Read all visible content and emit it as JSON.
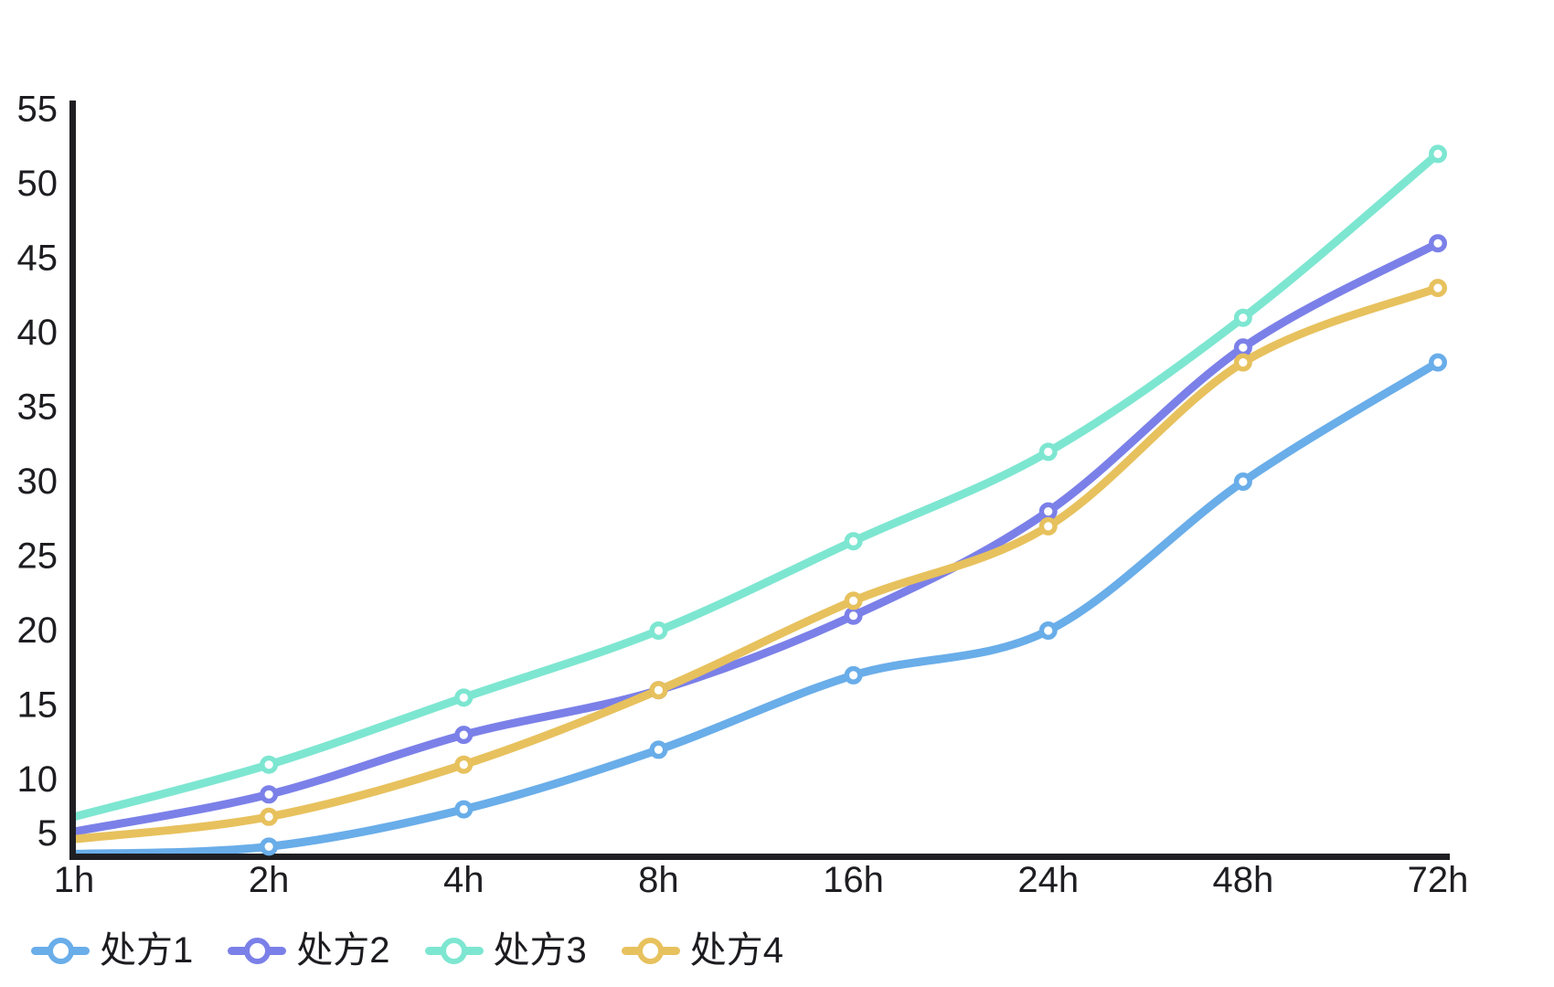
{
  "chart_data": {
    "type": "line",
    "title": "",
    "xlabel": "",
    "ylabel": "",
    "categories": [
      "1h",
      "2h",
      "4h",
      "8h",
      "16h",
      "24h",
      "48h",
      "72h"
    ],
    "series": [
      {
        "name": "处方1",
        "color": "#69ADE9",
        "values": [
          5,
          5.5,
          8,
          12,
          17,
          20,
          30,
          38
        ]
      },
      {
        "name": "处方2",
        "color": "#7B80E8",
        "values": [
          6.5,
          9,
          13,
          16,
          21,
          28,
          39,
          46
        ]
      },
      {
        "name": "处方3",
        "color": "#7DE6D1",
        "values": [
          7.5,
          11,
          15.5,
          20,
          26,
          32,
          41,
          52
        ]
      },
      {
        "name": "处方4",
        "color": "#E7C15D",
        "values": [
          6,
          7.5,
          11,
          16,
          22,
          27,
          38,
          43
        ]
      }
    ],
    "yticks": [
      5,
      10,
      15,
      20,
      25,
      30,
      35,
      40,
      45,
      50,
      55
    ],
    "ylim": [
      4.7,
      55.8
    ],
    "grid": false,
    "smooth": true,
    "legend_position": "bottom-left"
  },
  "style": {
    "background_color": "#ffffff",
    "axis_color": "#1f1f23",
    "tick_label_color": "#1e1e22",
    "line_width": 9,
    "marker": "donut-circle"
  }
}
